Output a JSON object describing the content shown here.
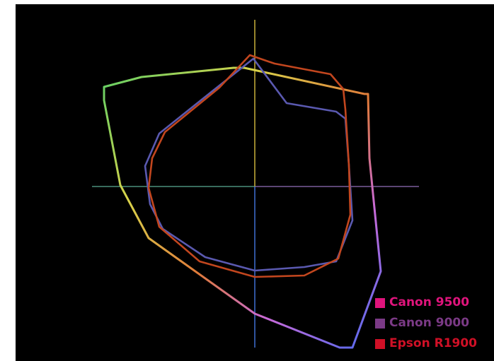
{
  "chart_data": {
    "type": "line",
    "title": "",
    "xlabel": "",
    "ylabel": "",
    "grid": false,
    "legend_position": "bottom-right",
    "background": "#000000",
    "axis_colors": {
      "horizontal": [
        "#4a8f7c",
        "#7a5c9a"
      ],
      "vertical": [
        "#c9b03a",
        "#3f6fd1"
      ]
    },
    "series": [
      {
        "name": "Canon 9500",
        "color": "#e0147c",
        "stroke": "gradient",
        "points": [
          [
            -213,
            141
          ],
          [
            -160,
            155
          ],
          [
            -30,
            168
          ],
          [
            -15,
            168
          ],
          [
            155,
            131
          ],
          [
            160,
            131
          ],
          [
            162,
            40
          ],
          [
            178,
            -120
          ],
          [
            138,
            -228
          ],
          [
            120,
            -228
          ],
          [
            0,
            -180
          ],
          [
            -150,
            -73
          ],
          [
            -190,
            2
          ],
          [
            -213,
            122
          ]
        ]
      },
      {
        "name": "Canon 9000",
        "color": "#7b3a86",
        "stroke": "#5a59b0",
        "points": [
          [
            -2,
            181
          ],
          [
            45,
            118
          ],
          [
            115,
            106
          ],
          [
            128,
            96
          ],
          [
            133,
            30
          ],
          [
            138,
            -48
          ],
          [
            115,
            -106
          ],
          [
            70,
            -114
          ],
          [
            0,
            -119
          ],
          [
            -70,
            -100
          ],
          [
            -130,
            -60
          ],
          [
            -148,
            -25
          ],
          [
            -155,
            29
          ],
          [
            -135,
            75
          ],
          [
            -60,
            135
          ],
          [
            -2,
            181
          ]
        ]
      },
      {
        "name": "Epson R1900",
        "color": "#d01026",
        "stroke": "#c2461e",
        "points": [
          [
            -7,
            186
          ],
          [
            28,
            174
          ],
          [
            107,
            159
          ],
          [
            125,
            138
          ],
          [
            128,
            109
          ],
          [
            133,
            30
          ],
          [
            135,
            -40
          ],
          [
            118,
            -102
          ],
          [
            70,
            -126
          ],
          [
            0,
            -128
          ],
          [
            -78,
            -106
          ],
          [
            -135,
            -57
          ],
          [
            -150,
            -2
          ],
          [
            -145,
            40
          ],
          [
            -127,
            77
          ],
          [
            -50,
            140
          ],
          [
            -7,
            186
          ]
        ]
      }
    ]
  },
  "legend": {
    "items": [
      {
        "label": "Canon 9500",
        "color": "#e0147c"
      },
      {
        "label": "Canon 9000",
        "color": "#7b3a86"
      },
      {
        "label": "Epson R1900",
        "color": "#d01026"
      }
    ]
  }
}
